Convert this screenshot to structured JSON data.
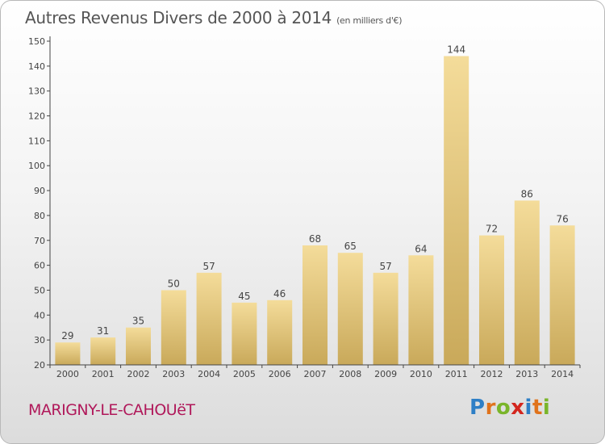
{
  "header": {
    "title": "Autres Revenus Divers de 2000 à 2014",
    "subtitle": "(en milliers d'€)"
  },
  "footer": {
    "commune": "MARIGNY-LE-CAHOUëT",
    "logo_letters": [
      "P",
      "r",
      "o",
      "x",
      "i",
      "t",
      "i"
    ],
    "logo_colors": [
      "#2e7fc6",
      "#e0731c",
      "#7ab52a",
      "#d3261e",
      "#2e7fc6",
      "#e0731c",
      "#7ab52a"
    ]
  },
  "colors": {
    "bar_light": "#f4dc9a",
    "bar_dark": "#c9a95a",
    "axis": "#444444",
    "grid": "#bbbbbb"
  },
  "chart_data": {
    "type": "bar",
    "title": "Autres Revenus Divers de 2000 à 2014",
    "subtitle": "(en milliers d'€)",
    "categories": [
      "2000",
      "2001",
      "2002",
      "2003",
      "2004",
      "2005",
      "2006",
      "2007",
      "2008",
      "2009",
      "2010",
      "2011",
      "2012",
      "2013",
      "2014"
    ],
    "values": [
      29,
      31,
      35,
      50,
      57,
      45,
      46,
      68,
      65,
      57,
      64,
      144,
      72,
      86,
      76
    ],
    "ylim": [
      20,
      150
    ],
    "yticks": [
      20,
      30,
      40,
      50,
      60,
      70,
      80,
      90,
      100,
      110,
      120,
      130,
      140,
      150
    ],
    "grid": false,
    "data_labels": true
  }
}
